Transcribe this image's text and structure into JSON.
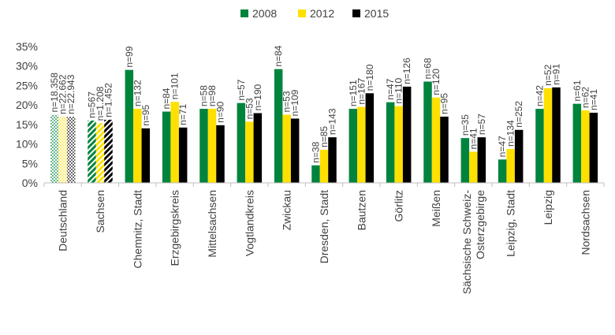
{
  "chart_data": {
    "type": "bar",
    "ylim": [
      0,
      35
    ],
    "yticks": [
      0,
      5,
      10,
      15,
      20,
      25,
      30,
      35
    ],
    "ytick_labels": [
      "0%",
      "5%",
      "10%",
      "15%",
      "20%",
      "25%",
      "30%",
      "35%"
    ],
    "grid": false,
    "legend_position": "top-center",
    "categories": [
      [
        "Deutschland"
      ],
      [
        "Sachsen"
      ],
      [
        "Chemnitz, Stadt"
      ],
      [
        "Erzgebirgskreis"
      ],
      [
        "Mittelsachsen"
      ],
      [
        "Vogtlandkreis"
      ],
      [
        "Zwickau"
      ],
      [
        "Dresden, Stadt"
      ],
      [
        "Bautzen"
      ],
      [
        "Görlitz"
      ],
      [
        "Meißen"
      ],
      [
        "Sächsische Schweiz-",
        "Osterzgebirge"
      ],
      [
        "Leipzig, Stadt"
      ],
      [
        "Leipzig"
      ],
      [
        "Nordsachsen"
      ]
    ],
    "series": [
      {
        "name": "2008",
        "color": "#00843D",
        "values": [
          17.5,
          16.0,
          29.0,
          18.3,
          19.0,
          20.5,
          29.2,
          4.5,
          19.0,
          20.7,
          26.0,
          11.5,
          6.0,
          19.0,
          20.3
        ],
        "n": [
          "n=18.358",
          "n=567",
          "n=99",
          "n=84",
          "n=58",
          "n=57",
          "n=84",
          "n=38",
          "n=151",
          "n=47",
          "n=68",
          "n=35",
          "n=47",
          "n=42",
          "n=61"
        ]
      },
      {
        "name": "2012",
        "color": "#FFE000",
        "values": [
          17.0,
          15.3,
          19.0,
          20.8,
          19.0,
          15.7,
          17.5,
          8.5,
          19.5,
          19.7,
          21.9,
          8.0,
          8.7,
          24.3,
          18.6
        ],
        "n": [
          "n=22.662",
          "n=1.208",
          "n=132",
          "n=101",
          "n=98",
          "n=53",
          "n=53",
          "n=85",
          "n=167",
          "n=110",
          "n=120",
          "n=41",
          "n=134",
          "n=52",
          "n=62"
        ]
      },
      {
        "name": "2015",
        "color": "#000000",
        "values": [
          17.0,
          16.2,
          14.0,
          14.2,
          14.8,
          17.9,
          16.5,
          11.7,
          23.0,
          24.7,
          17.0,
          11.7,
          13.6,
          24.5,
          18.0
        ],
        "n": [
          "n=22.943",
          "n=1.452",
          "n=95",
          "n=71",
          "n=90",
          "n=190",
          "n=109",
          "n=143",
          "n=180",
          "n=126",
          "n=95",
          "n=57",
          "n=252",
          "n=91",
          "n=41"
        ]
      }
    ],
    "hatched_categories": [
      "Deutschland",
      "Sachsen"
    ]
  }
}
